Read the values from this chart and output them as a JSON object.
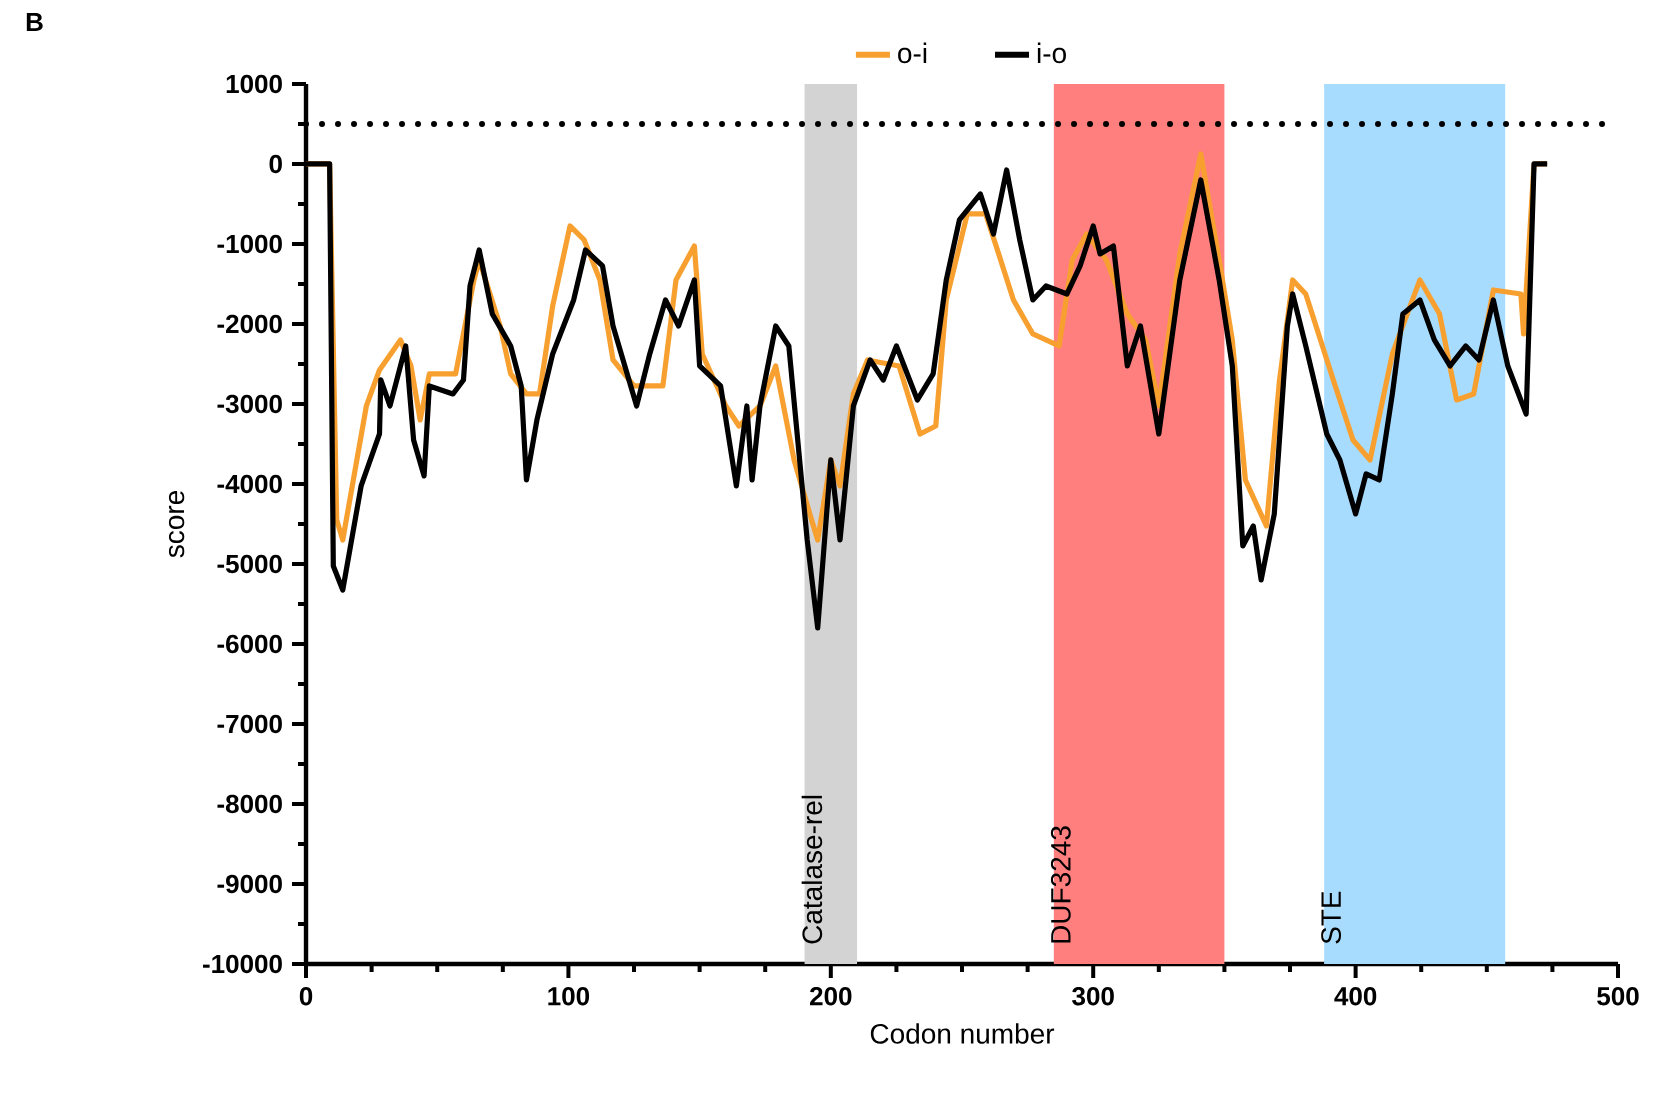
{
  "chart_data": {
    "type": "line",
    "xlabel": "Codon number",
    "ylabel": "score",
    "annotations": [
      "B"
    ],
    "xlim": [
      0,
      500
    ],
    "xticks": [
      0,
      100,
      200,
      300,
      400,
      500
    ],
    "ylim": [
      -10000,
      1000
    ],
    "yticks": [
      -10000,
      -9000,
      -8000,
      -7000,
      -6000,
      -5000,
      -4000,
      -3000,
      -2000,
      -1000,
      0,
      1000
    ],
    "legend": "top",
    "marker": "none",
    "line_style": "solid",
    "grid": false,
    "ref_lines": [
      {
        "axis": "y",
        "value": 500,
        "line_style": "dotted",
        "color": "#000000"
      }
    ],
    "bands": [
      {
        "axis": "x",
        "from": 190,
        "to": 210,
        "label": "Catalase-rel",
        "color": "#d3d3d3"
      },
      {
        "axis": "x",
        "from": 285,
        "to": 350,
        "label": "DUF3243",
        "color": "#ff7f7f"
      },
      {
        "axis": "x",
        "from": 388,
        "to": 457,
        "label": "STE",
        "color": "#a8dcff"
      }
    ],
    "series": [
      {
        "name": "o-i",
        "color": "#f7a030",
        "x": [
          0,
          9,
          11.7,
          14,
          23,
          28,
          36,
          40,
          43.5,
          47,
          57,
          64,
          66,
          74,
          78,
          84,
          89,
          94,
          100.6,
          106,
          112,
          117,
          125,
          136,
          141,
          148,
          151,
          160,
          165,
          173,
          179,
          186,
          192,
          195,
          200,
          203.5,
          208.6,
          214,
          226,
          234,
          240,
          244,
          252,
          259,
          263,
          269.6,
          277,
          287,
          292,
          297.5,
          305,
          313,
          320,
          325,
          333,
          341,
          348,
          353,
          358,
          366,
          371,
          376,
          381,
          391.5,
          399,
          405.5,
          414,
          424.5,
          432,
          438.5,
          445,
          452.5,
          463,
          464,
          468,
          473
        ],
        "values": [
          0,
          0,
          -4450,
          -4700,
          -3025,
          -2575,
          -2200,
          -2525,
          -3200,
          -2625,
          -2625,
          -1450,
          -1200,
          -2025,
          -2625,
          -2875,
          -2875,
          -1775,
          -775,
          -950,
          -1450,
          -2450,
          -2775,
          -2775,
          -1450,
          -1025,
          -2375,
          -3025,
          -3275,
          -3025,
          -2525,
          -3700,
          -4375,
          -4700,
          -3700,
          -4025,
          -2875,
          -2450,
          -2525,
          -3375,
          -3275,
          -1700,
          -625,
          -625,
          -1025,
          -1700,
          -2125,
          -2275,
          -1200,
          -875,
          -1200,
          -1875,
          -2200,
          -3025,
          -1125,
          125,
          -1200,
          -2200,
          -3950,
          -4525,
          -2700,
          -1450,
          -1625,
          -2700,
          -3450,
          -3700,
          -2375,
          -1450,
          -1875,
          -2950,
          -2875,
          -1575,
          -1625,
          -2125,
          0,
          0
        ]
      },
      {
        "name": "i-o",
        "color": "#000000",
        "x": [
          0,
          9,
          10.4,
          14,
          21,
          28,
          28.5,
          32,
          38,
          41,
          45,
          47,
          56,
          60,
          62.5,
          66,
          71,
          78,
          82,
          84,
          88,
          94,
          102,
          106.5,
          113,
          117,
          126,
          131,
          137,
          142,
          148,
          150,
          158,
          164,
          168,
          170,
          173,
          179,
          184,
          191,
          195,
          200,
          203.5,
          208.6,
          215,
          220,
          225,
          233,
          239,
          244,
          249,
          257,
          262,
          267,
          272,
          277,
          282,
          290,
          295,
          300,
          302.6,
          307.7,
          313,
          318,
          325,
          333,
          341,
          348,
          353,
          357,
          361,
          364,
          369,
          374,
          376,
          381,
          389,
          394,
          400,
          404,
          409,
          414,
          418,
          424.5,
          430,
          436,
          442,
          447,
          452.5,
          458,
          465,
          468,
          473
        ],
        "values": [
          0,
          0,
          -5025,
          -5325,
          -4025,
          -3375,
          -2700,
          -3025,
          -2275,
          -3450,
          -3900,
          -2775,
          -2875,
          -2700,
          -1525,
          -1075,
          -1875,
          -2275,
          -2775,
          -3950,
          -3200,
          -2375,
          -1700,
          -1075,
          -1275,
          -2025,
          -3025,
          -2375,
          -1700,
          -2025,
          -1450,
          -2525,
          -2775,
          -4025,
          -3025,
          -3950,
          -3025,
          -2025,
          -2275,
          -4700,
          -5800,
          -3700,
          -4700,
          -3025,
          -2450,
          -2700,
          -2275,
          -2950,
          -2625,
          -1450,
          -700,
          -375,
          -875,
          -75,
          -950,
          -1700,
          -1525,
          -1625,
          -1275,
          -775,
          -1125,
          -1025,
          -2525,
          -2025,
          -3375,
          -1450,
          -200,
          -1450,
          -2525,
          -4775,
          -4525,
          -5200,
          -4375,
          -2025,
          -1625,
          -2275,
          -3375,
          -3700,
          -4375,
          -3875,
          -3950,
          -2875,
          -1875,
          -1700,
          -2200,
          -2525,
          -2275,
          -2450,
          -1700,
          -2525,
          -3125,
          0,
          0
        ]
      }
    ]
  }
}
